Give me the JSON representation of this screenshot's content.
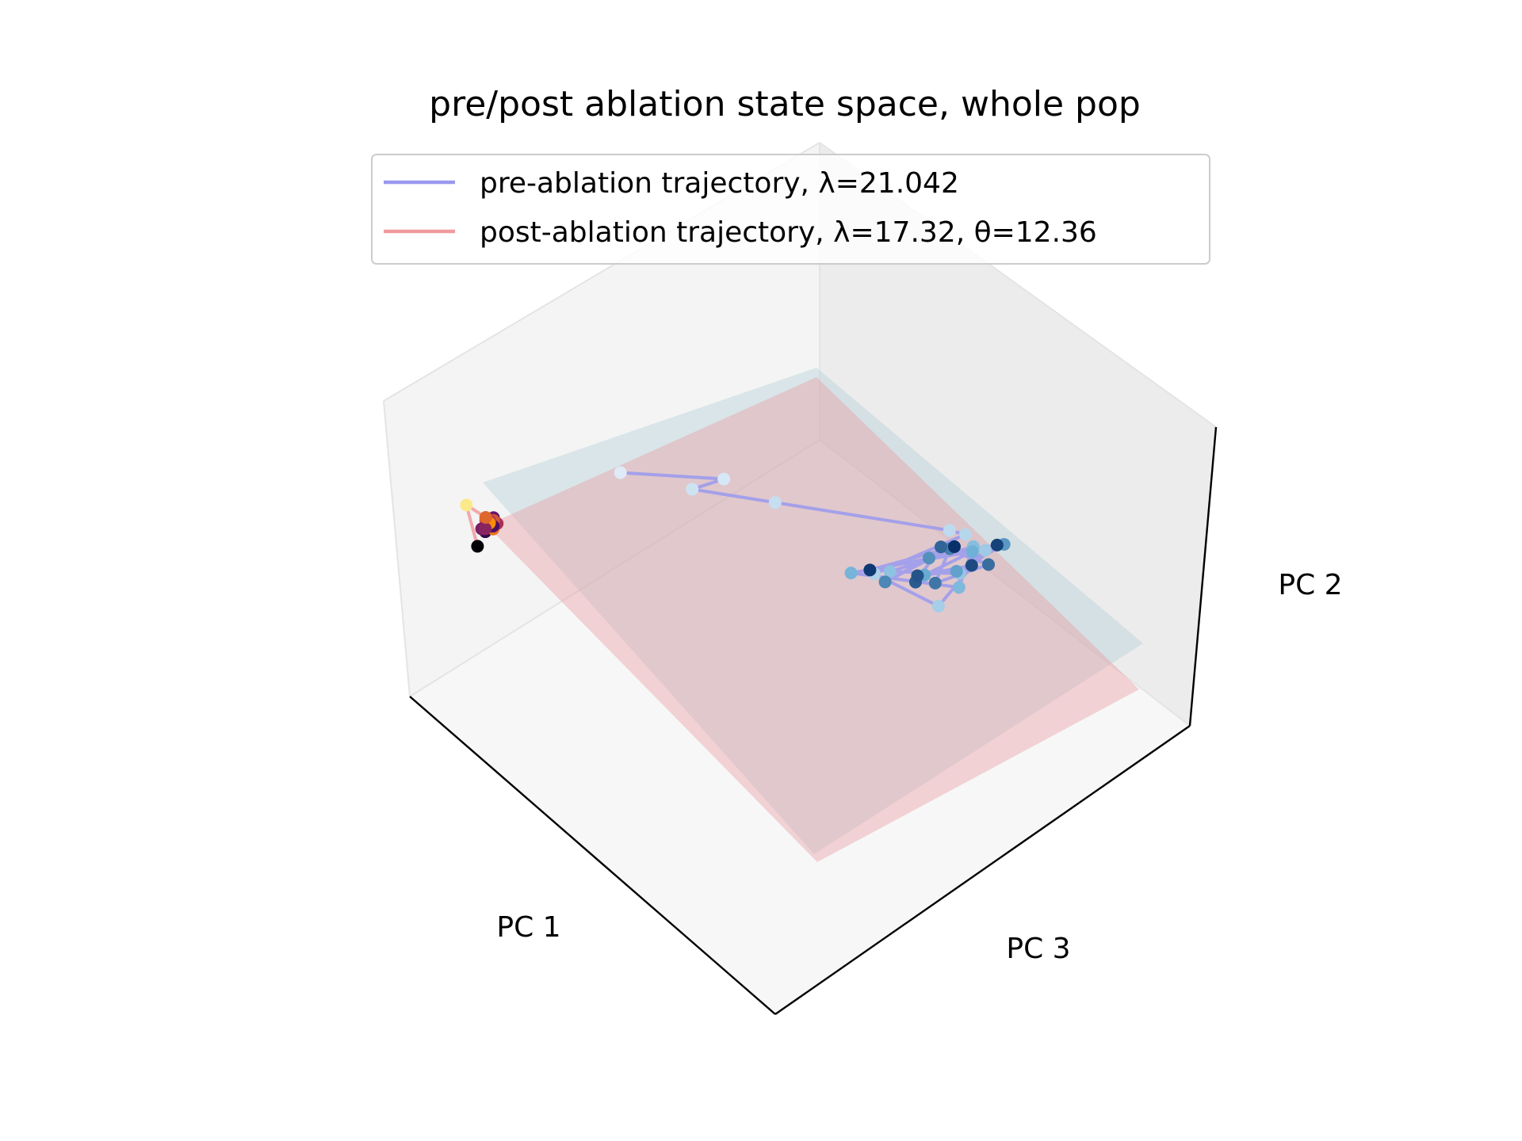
{
  "chart_data": {
    "type": "scatter3d",
    "title": "pre/post ablation state space, whole pop",
    "axes": {
      "x": "PC 1",
      "y": "PC 3",
      "z": "PC 2"
    },
    "grid": false,
    "legend_placement": "upper center",
    "legend": [
      {
        "label": "pre-ablation trajectory, λ=21.042",
        "color": "#9999ee"
      },
      {
        "label": "post-ablation trajectory, λ=17.32, θ=12.36",
        "color": "#f09a9e"
      }
    ],
    "planes": [
      {
        "name": "pre-ablation-plane",
        "color": "#aecdd6",
        "opacity": 0.38
      },
      {
        "name": "post-ablation-plane",
        "color": "#e8a1a8",
        "opacity": 0.45
      }
    ],
    "series": [
      {
        "name": "pre-ablation trajectory",
        "line_color": "#9999ee",
        "marker_cmap": "Blues",
        "points": [
          [
            0.73,
            0.27,
            0.78
          ],
          [
            0.55,
            0.35,
            0.68
          ],
          [
            0.6,
            0.32,
            0.66
          ],
          [
            0.47,
            0.4,
            0.58
          ],
          [
            0.18,
            0.55,
            0.38
          ],
          [
            0.15,
            0.56,
            0.35
          ],
          [
            0.3,
            0.48,
            0.27
          ],
          [
            0.27,
            0.62,
            0.27
          ],
          [
            0.12,
            0.58,
            0.29
          ],
          [
            0.2,
            0.6,
            0.3
          ],
          [
            0.28,
            0.5,
            0.28
          ],
          [
            0.14,
            0.57,
            0.31
          ],
          [
            0.22,
            0.62,
            0.29
          ],
          [
            0.33,
            0.45,
            0.27
          ],
          [
            0.16,
            0.59,
            0.33
          ],
          [
            0.25,
            0.56,
            0.3
          ],
          [
            0.19,
            0.58,
            0.28
          ],
          [
            0.11,
            0.62,
            0.34
          ],
          [
            0.23,
            0.55,
            0.33
          ],
          [
            0.31,
            0.52,
            0.29
          ],
          [
            0.17,
            0.54,
            0.3
          ],
          [
            0.26,
            0.6,
            0.32
          ],
          [
            0.13,
            0.6,
            0.27
          ],
          [
            0.21,
            0.56,
            0.36
          ],
          [
            0.29,
            0.58,
            0.33
          ],
          [
            0.24,
            0.53,
            0.26
          ],
          [
            0.18,
            0.61,
            0.32
          ],
          [
            0.1,
            0.59,
            0.3
          ],
          [
            0.32,
            0.49,
            0.31
          ],
          [
            0.15,
            0.53,
            0.28
          ]
        ]
      },
      {
        "name": "post-ablation trajectory",
        "line_color": "#f09a9e",
        "marker_cmap": "inferno",
        "points": [
          [
            0.87,
            0.06,
            0.5
          ],
          [
            0.86,
            0.06,
            0.52
          ],
          [
            0.86,
            0.07,
            0.51
          ],
          [
            0.85,
            0.06,
            0.53
          ],
          [
            0.86,
            0.05,
            0.52
          ],
          [
            0.86,
            0.06,
            0.51
          ],
          [
            0.85,
            0.07,
            0.52
          ],
          [
            0.86,
            0.06,
            0.53
          ],
          [
            0.87,
            0.05,
            0.5
          ],
          [
            0.85,
            0.06,
            0.52
          ],
          [
            0.86,
            0.07,
            0.52
          ],
          [
            0.85,
            0.05,
            0.51
          ],
          [
            0.86,
            0.06,
            0.52
          ],
          [
            0.87,
            0.06,
            0.51
          ],
          [
            0.86,
            0.05,
            0.53
          ],
          [
            0.88,
            0.02,
            0.56
          ],
          [
            0.88,
            0.05,
            0.45
          ]
        ]
      }
    ]
  }
}
